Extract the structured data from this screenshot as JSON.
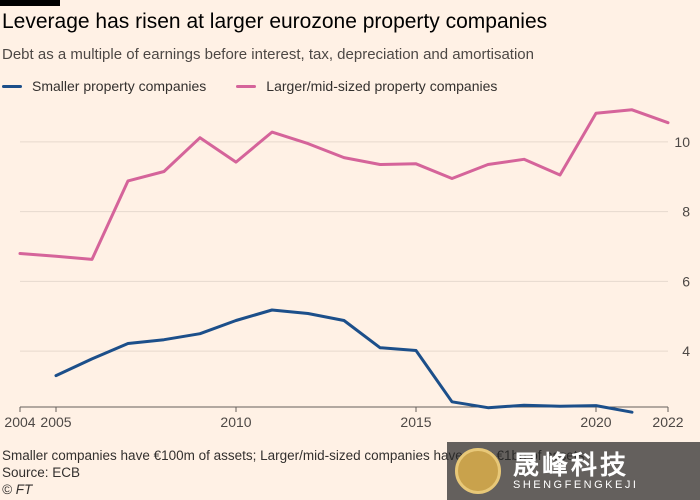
{
  "header": {
    "title": "Leverage has risen at larger eurozone property companies",
    "subtitle": "Debt as a multiple of earnings before interest, tax, depreciation and amortisation"
  },
  "legend": {
    "items": [
      {
        "label": "Smaller property companies",
        "color": "#1c4f8a"
      },
      {
        "label": "Larger/mid-sized property companies",
        "color": "#d5649a"
      }
    ]
  },
  "chart_data": {
    "type": "line",
    "xlim": [
      2004,
      2022
    ],
    "ylim": [
      2.4,
      11.2
    ],
    "ygrid": [
      4,
      6,
      8,
      10
    ],
    "xticks": [
      "2004",
      "2005",
      "2010",
      "2015",
      "2020",
      "2022"
    ],
    "yticks": [
      "4",
      "6",
      "8",
      "10"
    ],
    "grid": true,
    "legend_position": "top-left",
    "series": [
      {
        "name": "Smaller property companies",
        "color": "#1c4f8a",
        "x": [
          2005,
          2006,
          2007,
          2008,
          2009,
          2010,
          2011,
          2012,
          2013,
          2014,
          2015,
          2016,
          2017,
          2018,
          2019,
          2020,
          2021
        ],
        "y": [
          3.3,
          3.78,
          4.22,
          4.33,
          4.5,
          4.88,
          5.18,
          5.08,
          4.88,
          4.1,
          4.02,
          2.55,
          2.38,
          2.45,
          2.42,
          2.44,
          2.25
        ]
      },
      {
        "name": "Larger/mid-sized property companies",
        "color": "#d5649a",
        "x": [
          2004,
          2005,
          2006,
          2007,
          2008,
          2009,
          2010,
          2011,
          2012,
          2013,
          2014,
          2015,
          2016,
          2017,
          2018,
          2019,
          2020,
          2021,
          2022
        ],
        "y": [
          6.8,
          6.72,
          6.63,
          8.88,
          9.15,
          10.12,
          9.42,
          10.28,
          9.95,
          9.55,
          9.35,
          9.37,
          8.95,
          9.35,
          9.5,
          9.05,
          10.82,
          10.92,
          10.55
        ]
      }
    ]
  },
  "footer": {
    "note": "Smaller companies have €100m of assets; Larger/mid-sized companies have over €1bn of assets",
    "source": "Source: ECB",
    "credit": "© FT"
  },
  "watermark": {
    "cn": "晟峰科技",
    "en": "SHENGFENGKEJI"
  }
}
